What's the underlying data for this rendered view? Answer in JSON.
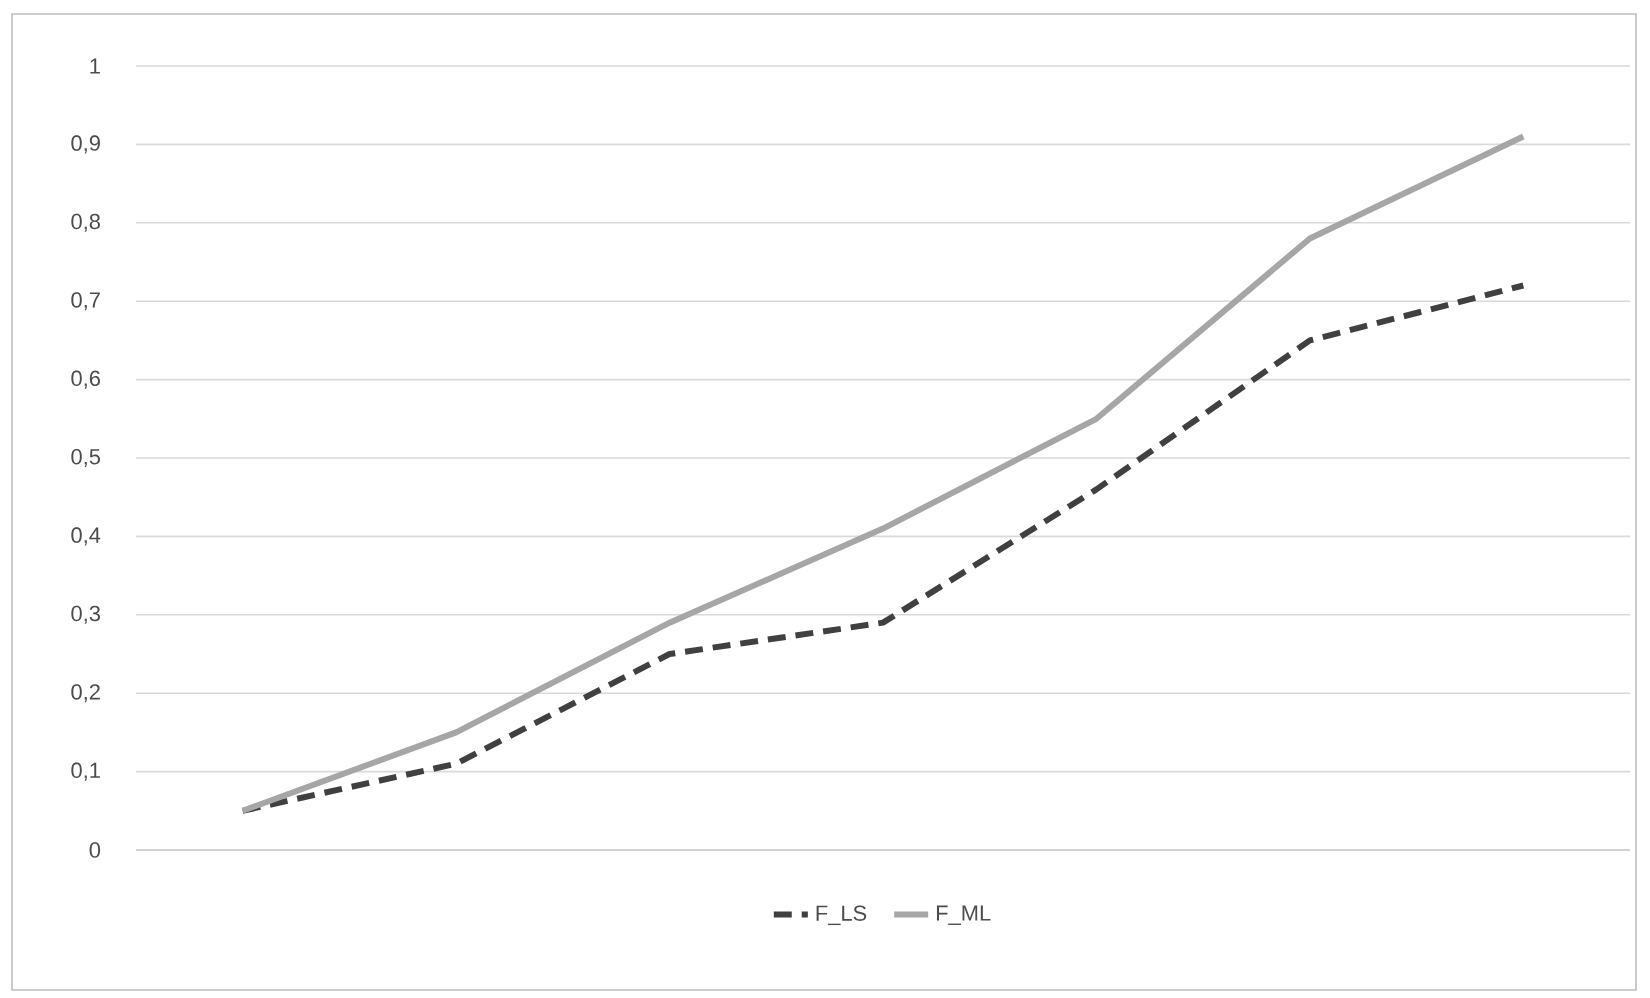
{
  "chart_data": {
    "type": "line",
    "categories": [
      null,
      null,
      null,
      null,
      null,
      null,
      null
    ],
    "series": [
      {
        "name": "F_LS",
        "color": "#404040",
        "line_style": "dashed",
        "values": [
          0.05,
          0.11,
          0.25,
          0.29,
          0.46,
          0.65,
          0.72
        ]
      },
      {
        "name": "F_ML",
        "color": "#a6a6a6",
        "line_style": "solid",
        "values": [
          0.05,
          0.15,
          0.29,
          0.41,
          0.55,
          0.78,
          0.91
        ]
      }
    ],
    "ylim": [
      0,
      1
    ],
    "yticks": [
      0,
      {
        "value": 0.1,
        "label": "0,1"
      },
      {
        "value": 0.2,
        "label": "0,2"
      },
      {
        "value": 0.3,
        "label": "0,3"
      },
      {
        "value": 0.4,
        "label": "0,4"
      },
      {
        "value": 0.5,
        "label": "0,5"
      },
      {
        "value": 0.6,
        "label": "0,6"
      },
      {
        "value": 0.7,
        "label": "0,7"
      },
      {
        "value": 0.8,
        "label": "0,8"
      },
      {
        "value": 0.9,
        "label": "0,9"
      },
      1
    ],
    "grid": "y",
    "legend": "bottom",
    "marker": "none"
  }
}
